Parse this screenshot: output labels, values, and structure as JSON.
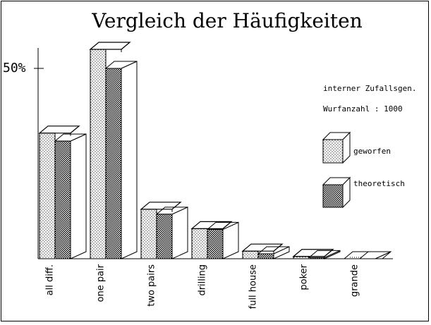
{
  "chart_data": {
    "type": "bar",
    "title": "Vergleich der Häufigkeiten",
    "ytick_label": "50%",
    "ylim": [
      0,
      0.62
    ],
    "categories": [
      "all diff.",
      "one pair",
      "two pairs",
      "drilling",
      "full house",
      "poker",
      "grande"
    ],
    "series": [
      {
        "name": "geworfen",
        "values": [
          0.33,
          0.55,
          0.13,
          0.079,
          0.02,
          0.006,
          0.0
        ]
      },
      {
        "name": "theoretisch",
        "values": [
          0.309,
          0.5,
          0.117,
          0.077,
          0.013,
          0.003,
          0.0
        ]
      }
    ],
    "notes": [
      "interner Zufallsgen.",
      "Wurfanzahl : 1000"
    ],
    "colors": {
      "ink": "#000000",
      "paper": "#ffffff"
    }
  }
}
